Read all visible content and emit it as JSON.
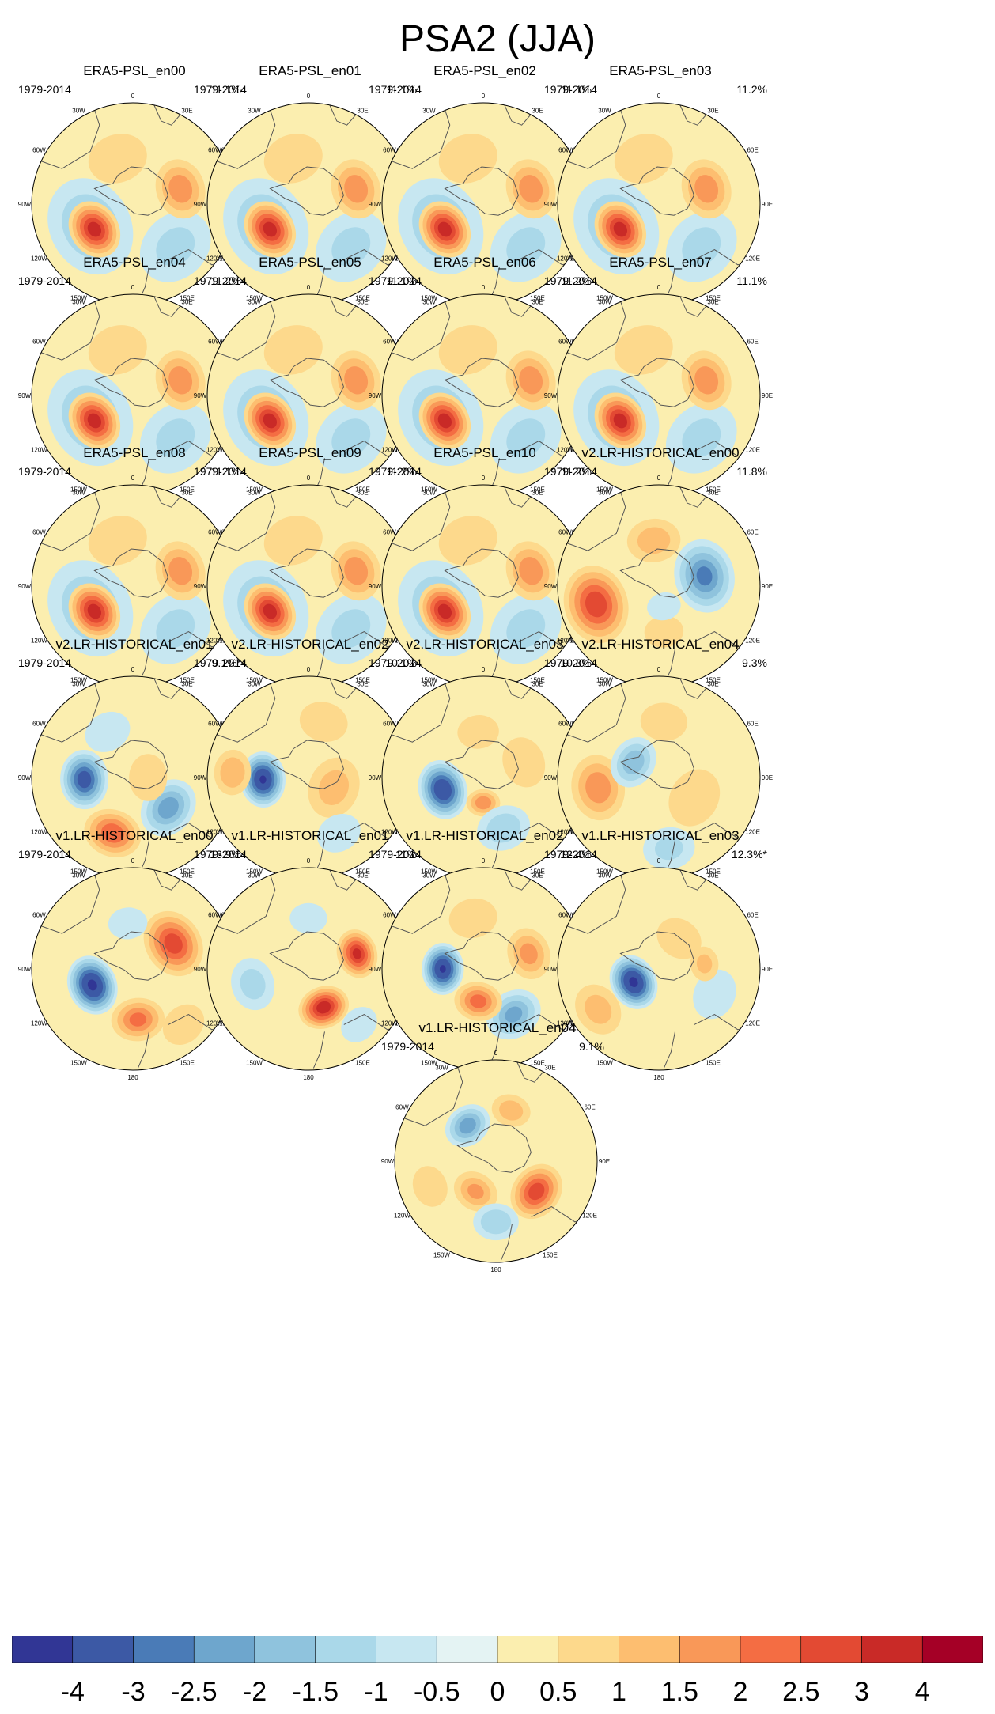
{
  "title": "PSA2 (JJA)",
  "period_label": "1979-2014",
  "lon_labels": [
    "0",
    "30E",
    "60E",
    "90E",
    "120E",
    "150E",
    "180",
    "150W",
    "120W",
    "90W",
    "60W",
    "30W"
  ],
  "chart_data": {
    "type": "heatmap",
    "description_type": "polar stereographic maps of regressed sea level pressure",
    "panels": [
      {
        "name": "ERA5-PSL_en00",
        "period": "1979-2014",
        "variance": "11.1%",
        "pattern": "era5"
      },
      {
        "name": "ERA5-PSL_en01",
        "period": "1979-2014",
        "variance": "11.1%",
        "pattern": "era5"
      },
      {
        "name": "ERA5-PSL_en02",
        "period": "1979-2014",
        "variance": "11.1%",
        "pattern": "era5"
      },
      {
        "name": "ERA5-PSL_en03",
        "period": "1979-2014",
        "variance": "11.2%",
        "pattern": "era5"
      },
      {
        "name": "ERA5-PSL_en04",
        "period": "1979-2014",
        "variance": "11.2%",
        "pattern": "era5"
      },
      {
        "name": "ERA5-PSL_en05",
        "period": "1979-2014",
        "variance": "11.1%",
        "pattern": "era5"
      },
      {
        "name": "ERA5-PSL_en06",
        "period": "1979-2014",
        "variance": "11.2%",
        "pattern": "era5"
      },
      {
        "name": "ERA5-PSL_en07",
        "period": "1979-2014",
        "variance": "11.1%",
        "pattern": "era5"
      },
      {
        "name": "ERA5-PSL_en08",
        "period": "1979-2014",
        "variance": "11.1%",
        "pattern": "era5"
      },
      {
        "name": "ERA5-PSL_en09",
        "period": "1979-2014",
        "variance": "11.2%",
        "pattern": "era5"
      },
      {
        "name": "ERA5-PSL_en10",
        "period": "1979-2014",
        "variance": "11.2%",
        "pattern": "era5"
      },
      {
        "name": "v2.LR-HISTORICAL_en00",
        "period": "1979-2014",
        "variance": "11.8%",
        "pattern": "v2_00"
      },
      {
        "name": "v2.LR-HISTORICAL_en01",
        "period": "1979-2014",
        "variance": "9.1%*",
        "pattern": "v2_01"
      },
      {
        "name": "v2.LR-HISTORICAL_en02",
        "period": "1979-2014",
        "variance": "10.1%",
        "pattern": "v2_02"
      },
      {
        "name": "v2.LR-HISTORICAL_en03",
        "period": "1979-2014",
        "variance": "10.3%",
        "pattern": "v2_03"
      },
      {
        "name": "v2.LR-HISTORICAL_en04",
        "period": "1979-2014",
        "variance": "9.3%",
        "pattern": "v2_04"
      },
      {
        "name": "v1.LR-HISTORICAL_en00",
        "period": "1979-2014",
        "variance": "13.9%",
        "pattern": "v1_00"
      },
      {
        "name": "v1.LR-HISTORICAL_en01",
        "period": "1979-2014",
        "variance": "11%",
        "pattern": "v1_01"
      },
      {
        "name": "v1.LR-HISTORICAL_en02",
        "period": "1979-2014",
        "variance": "12.4%",
        "pattern": "v1_02"
      },
      {
        "name": "v1.LR-HISTORICAL_en03",
        "period": "1979-2014",
        "variance": "12.3%*",
        "pattern": "v1_03"
      },
      {
        "name": "v1.LR-HISTORICAL_en04",
        "period": "1979-2014",
        "variance": "9.1%",
        "pattern": "v1_04"
      }
    ],
    "colorbar": {
      "ticks": [
        "-4",
        "-3",
        "-2.5",
        "-2",
        "-1.5",
        "-1",
        "-0.5",
        "0",
        "0.5",
        "1",
        "1.5",
        "2",
        "2.5",
        "3",
        "4"
      ],
      "colors": [
        "#313695",
        "#3c59a5",
        "#4a7bb7",
        "#6ea6cd",
        "#8fc3dd",
        "#aad8e9",
        "#c7e7f1",
        "#e4f3f3",
        "#fbeeaf",
        "#fdd98c",
        "#fdbe70",
        "#f99858",
        "#f46d43",
        "#e34a33",
        "#c92a27",
        "#a50026"
      ]
    }
  }
}
